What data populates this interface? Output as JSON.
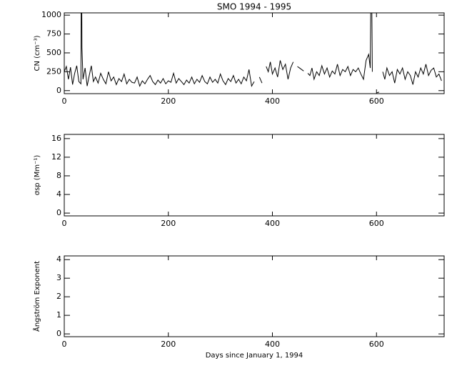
{
  "chart_data": [
    {
      "type": "line",
      "title": "SMO 1994 - 1995",
      "y_label": "CN (cm⁻³)",
      "xlim": [
        0,
        730
      ],
      "xticks": [
        0,
        200,
        400,
        600
      ],
      "ylim": [
        -40,
        1030
      ],
      "yticks": [
        0,
        250,
        500,
        750,
        1000
      ],
      "series": [
        {
          "color": "#000000",
          "x": [
            0,
            4,
            8,
            12,
            16,
            20,
            24,
            28,
            32,
            33,
            34,
            36,
            40,
            44,
            48,
            52,
            56,
            60,
            65,
            70,
            75,
            80,
            85,
            90,
            95,
            100,
            105,
            110,
            115,
            120,
            125,
            130,
            135,
            140,
            145,
            150,
            155,
            160,
            165,
            170,
            175,
            180,
            185,
            190,
            195,
            200,
            205,
            210,
            215,
            220,
            225,
            230,
            235,
            240,
            245,
            250,
            255,
            260,
            265,
            270,
            275,
            280,
            285,
            290,
            295,
            300,
            305,
            310,
            315,
            320,
            325,
            330,
            335,
            340,
            345,
            350,
            355,
            360,
            365,
            368,
            375,
            380,
            384,
            388,
            392,
            396,
            400,
            405,
            410,
            415,
            420,
            425,
            430,
            435,
            440,
            443,
            448,
            452,
            456,
            460,
            463,
            468,
            472,
            476,
            480,
            485,
            490,
            495,
            500,
            505,
            510,
            515,
            520,
            525,
            530,
            535,
            540,
            545,
            550,
            555,
            560,
            565,
            570,
            575,
            580,
            585,
            588,
            590,
            592,
            596,
            600,
            605,
            608,
            612,
            616,
            620,
            625,
            630,
            635,
            640,
            645,
            650,
            655,
            660,
            665,
            670,
            675,
            680,
            685,
            690,
            695,
            700,
            705,
            710,
            715,
            720,
            725
          ],
          "values": [
            250,
            320,
            150,
            310,
            80,
            230,
            330,
            120,
            90,
            2000,
            570,
            150,
            300,
            60,
            200,
            330,
            120,
            180,
            100,
            230,
            150,
            90,
            250,
            130,
            180,
            80,
            160,
            120,
            220,
            90,
            150,
            110,
            100,
            180,
            60,
            130,
            90,
            150,
            200,
            120,
            80,
            140,
            100,
            160,
            90,
            130,
            110,
            230,
            100,
            160,
            120,
            80,
            140,
            100,
            180,
            90,
            150,
            110,
            200,
            120,
            90,
            180,
            110,
            150,
            100,
            220,
            130,
            80,
            160,
            120,
            200,
            100,
            150,
            90,
            180,
            130,
            280,
            60,
            120,
            null,
            180,
            100,
            null,
            320,
            250,
            380,
            220,
            300,
            180,
            400,
            280,
            350,
            150,
            300,
            380,
            null,
            320,
            300,
            280,
            260,
            null,
            230,
            200,
            300,
            150,
            250,
            200,
            330,
            220,
            300,
            180,
            260,
            220,
            350,
            200,
            280,
            250,
            320,
            200,
            280,
            250,
            300,
            220,
            150,
            400,
            480,
            300,
            2000,
            250,
            null,
            -30,
            -20,
            null,
            250,
            150,
            300,
            200,
            250,
            100,
            280,
            220,
            300,
            150,
            250,
            200,
            80,
            250,
            180,
            300,
            220,
            350,
            200,
            270,
            300,
            180,
            220,
            130
          ]
        }
      ]
    },
    {
      "type": "line",
      "y_label": "σsp (Mm⁻¹)",
      "xlim": [
        0,
        730
      ],
      "xticks": [
        0,
        200,
        400,
        600
      ],
      "ylim": [
        -0.6,
        16.9
      ],
      "yticks": [
        0,
        4,
        8,
        12,
        16
      ]
    },
    {
      "type": "line",
      "y_label": "Ångström Exponent",
      "x_label": "Days since January 1, 1994",
      "xlim": [
        0,
        730
      ],
      "xticks": [
        0,
        200,
        400,
        600
      ],
      "ylim": [
        -0.15,
        4.2
      ],
      "yticks": [
        0,
        1,
        2,
        3,
        4
      ]
    }
  ]
}
